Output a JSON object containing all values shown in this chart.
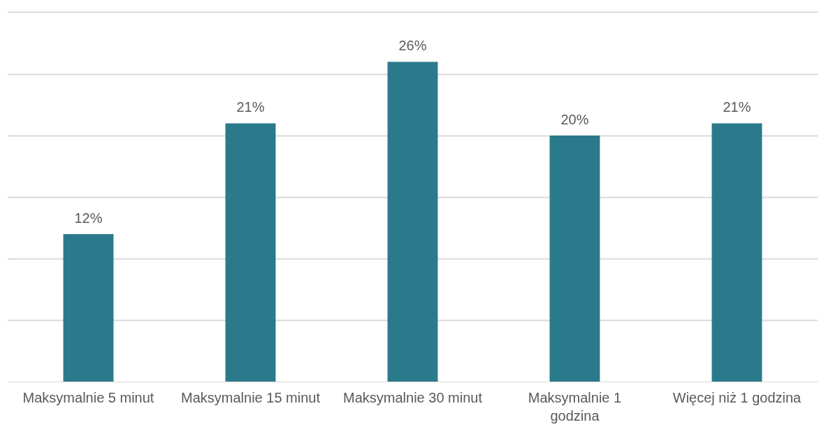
{
  "chart_data": {
    "type": "bar",
    "categories": [
      "Maksymalnie 5 minut",
      "Maksymalnie 15 minut",
      "Maksymalnie 30 minut",
      "Maksymalnie 1 godzina",
      "Więcej niż 1 godzina"
    ],
    "values": [
      12,
      21,
      26,
      20,
      21
    ],
    "value_labels": [
      "12%",
      "21%",
      "26%",
      "20%",
      "21%"
    ],
    "color": "#2a7a8c",
    "tick_labels": "x",
    "grid": "y"
  }
}
